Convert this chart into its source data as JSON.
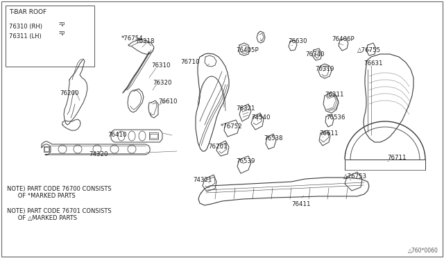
{
  "bg_color": "#f5f5f0",
  "border_color": "#888888",
  "line_color": "#404040",
  "text_color": "#202020",
  "fig_width": 6.4,
  "fig_height": 3.72,
  "dpi": 100,
  "inset_title": "T-BAR ROOF",
  "inset_lines": [
    "76310 (RH)",
    "76311 (LH)"
  ],
  "note1": "NOTE) PART CODE 76700 CONSISTS\n      OF *MARKED PARTS",
  "note2": "NOTE) PART CODE 76701 CONSISTS\n      OF △MARKED PARTS",
  "watermark": "△760*0060"
}
